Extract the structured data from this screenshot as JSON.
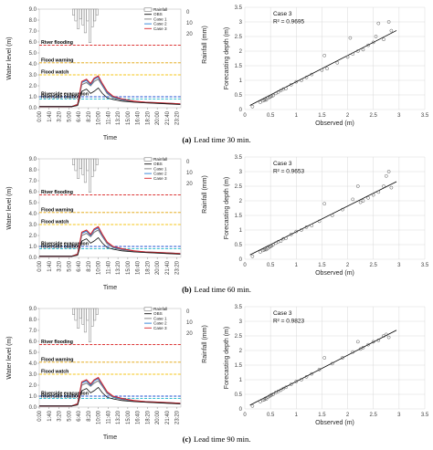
{
  "hydro": {
    "ylabel": "Water level (m)",
    "y2label": "Rainfall (mm)",
    "xlabel": "Time",
    "y_ticks": [
      "0.0",
      "1.0",
      "2.0",
      "3.0",
      "4.0",
      "5.0",
      "6.0",
      "7.0",
      "8.0",
      "9.0"
    ],
    "y2_ticks": [
      "0",
      "10",
      "20"
    ],
    "x_ticks": [
      "0:00",
      "1:40",
      "3:20",
      "5:00",
      "6:40",
      "8:20",
      "10:00",
      "11:40",
      "13:20",
      "15:00",
      "16:40",
      "18:20",
      "20:00",
      "21:40",
      "23:20"
    ],
    "levels": [
      {
        "name": "River flooding",
        "value": 5.7,
        "color": "#d81b1b"
      },
      {
        "name": "Flood warning",
        "value": 4.1,
        "color": "#e0a000"
      },
      {
        "name": "Flood watch",
        "value": 3.0,
        "color": "#f5c518"
      },
      {
        "name": "Riverside evacuation",
        "value": 1.0,
        "color": "#1f4fd0"
      },
      {
        "name": "Riverside caution",
        "value": 0.8,
        "color": "#19b5c9"
      }
    ],
    "legend": [
      "Rainfall",
      "OBS",
      "Case 1",
      "Case 2",
      "Case 3"
    ],
    "series_colors": {
      "OBS": "#111111",
      "Case 1": "#7f7f7f",
      "Case 2": "#2a7fd4",
      "Case 3": "#d7262b"
    }
  },
  "scatter": {
    "xlabel": "Observed (m)",
    "ylabel": "Forecasting depth (m)",
    "ticks": [
      "0",
      "0.5",
      "1",
      "1.5",
      "2",
      "2.5",
      "3",
      "3.5"
    ]
  },
  "panels": [
    {
      "letter": "(a)",
      "caption": "Lead time 30 min.",
      "case_label": "Case 3",
      "r2": "R² = 0.9695"
    },
    {
      "letter": "(b)",
      "caption": "Lead time 60 min.",
      "case_label": "Case 3",
      "r2": "R² = 0.9653"
    },
    {
      "letter": "(c)",
      "caption": "Lead time 90 min.",
      "case_label": "Case 3",
      "r2": "R² = 0.9823"
    }
  ],
  "chart_data": [
    {
      "type": "line",
      "title": "",
      "xlabel": "Time",
      "ylabel": "Water level (m)",
      "ylim": [
        0,
        9
      ],
      "x": [
        0,
        5.5,
        6.5,
        7.2,
        8.0,
        8.7,
        9.3,
        10.0,
        10.7,
        11.5,
        12.5,
        14.0,
        16.0,
        18.0,
        20.0,
        22.0,
        23.9
      ],
      "series": [
        {
          "name": "OBS",
          "values": [
            0.1,
            0.1,
            0.2,
            1.5,
            1.7,
            1.3,
            1.5,
            1.8,
            1.3,
            0.9,
            0.75,
            0.6,
            0.5,
            0.45,
            0.4,
            0.35,
            0.3
          ]
        },
        {
          "name": "Case 1",
          "values": [
            0.1,
            0.1,
            0.3,
            2.1,
            2.3,
            2.0,
            2.4,
            2.6,
            2.0,
            1.3,
            0.9,
            0.7,
            0.55,
            0.45,
            0.4,
            0.35,
            0.3
          ]
        },
        {
          "name": "Case 2",
          "values": [
            0.1,
            0.1,
            0.3,
            2.3,
            2.5,
            2.1,
            2.6,
            2.8,
            2.1,
            1.4,
            1.0,
            0.75,
            0.6,
            0.5,
            0.45,
            0.4,
            0.35
          ]
        },
        {
          "name": "Case 3",
          "values": [
            0.1,
            0.1,
            0.3,
            2.4,
            2.6,
            2.2,
            2.7,
            2.9,
            2.2,
            1.5,
            1.05,
            0.8,
            0.6,
            0.5,
            0.45,
            0.4,
            0.35
          ]
        }
      ],
      "rainfall": {
        "x": [
          5.8,
          6.2,
          6.6,
          7.0,
          7.4,
          7.8,
          8.2,
          8.6,
          9.0,
          9.4,
          9.8
        ],
        "values": [
          3,
          6,
          10,
          5,
          8,
          12,
          6,
          17,
          9,
          6,
          3
        ],
        "y2lim": [
          0,
          30
        ]
      },
      "thresholds": {
        "River flooding": 5.7,
        "Flood warning": 4.1,
        "Flood watch": 3.0,
        "Riverside evacuation": 1.0,
        "Riverside caution": 0.8
      }
    },
    {
      "type": "scatter",
      "title": "",
      "xlabel": "Observed (m)",
      "ylabel": "Forecasting depth (m)",
      "xlim": [
        0,
        3.5
      ],
      "ylim": [
        0,
        3.5
      ],
      "trendline": {
        "slope": 0.9,
        "intercept": 0.05
      },
      "x": [
        0.15,
        0.3,
        0.35,
        0.38,
        0.4,
        0.42,
        0.45,
        0.48,
        0.5,
        0.52,
        0.55,
        0.6,
        0.65,
        0.7,
        0.75,
        0.8,
        0.9,
        1.0,
        1.1,
        1.2,
        1.3,
        1.5,
        1.55,
        1.6,
        1.8,
        2.0,
        2.05,
        2.1,
        2.2,
        2.3,
        2.4,
        2.5,
        2.55,
        2.6,
        2.7,
        2.8,
        2.85
      ],
      "y": [
        0.1,
        0.25,
        0.3,
        0.32,
        0.35,
        0.33,
        0.4,
        0.42,
        0.44,
        0.46,
        0.48,
        0.55,
        0.6,
        0.65,
        0.7,
        0.72,
        0.85,
        0.95,
        1.0,
        1.1,
        1.2,
        1.35,
        1.85,
        1.4,
        1.6,
        1.8,
        2.45,
        1.9,
        2.0,
        2.05,
        2.2,
        2.3,
        2.5,
        2.95,
        2.4,
        3.0,
        2.7
      ]
    },
    {
      "type": "line",
      "title": "",
      "xlabel": "Time",
      "ylabel": "Water level (m)",
      "ylim": [
        0,
        9
      ],
      "x": [
        0,
        5.5,
        6.5,
        7.2,
        8.0,
        8.7,
        9.3,
        10.0,
        10.7,
        11.5,
        12.5,
        14.0,
        16.0,
        18.0,
        20.0,
        22.0,
        23.9
      ],
      "series": [
        {
          "name": "OBS",
          "values": [
            0.1,
            0.1,
            0.2,
            1.5,
            1.7,
            1.3,
            1.5,
            1.8,
            1.3,
            0.9,
            0.75,
            0.6,
            0.5,
            0.45,
            0.4,
            0.35,
            0.3
          ]
        },
        {
          "name": "Case 1",
          "values": [
            0.1,
            0.1,
            0.3,
            2.0,
            2.2,
            1.9,
            2.3,
            2.5,
            1.9,
            1.25,
            0.9,
            0.7,
            0.55,
            0.45,
            0.4,
            0.35,
            0.3
          ]
        },
        {
          "name": "Case 2",
          "values": [
            0.1,
            0.1,
            0.3,
            2.2,
            2.4,
            2.0,
            2.5,
            2.7,
            2.0,
            1.35,
            0.95,
            0.75,
            0.6,
            0.5,
            0.45,
            0.4,
            0.35
          ]
        },
        {
          "name": "Case 3",
          "values": [
            0.1,
            0.1,
            0.3,
            2.3,
            2.5,
            2.1,
            2.6,
            2.8,
            2.1,
            1.4,
            1.0,
            0.8,
            0.6,
            0.5,
            0.45,
            0.4,
            0.35
          ]
        }
      ],
      "rainfall": {
        "x": [
          5.8,
          6.2,
          6.6,
          7.0,
          7.4,
          7.8,
          8.2,
          8.6,
          9.0,
          9.4,
          9.8
        ],
        "values": [
          3,
          6,
          10,
          5,
          8,
          12,
          6,
          17,
          9,
          6,
          3
        ],
        "y2lim": [
          0,
          30
        ]
      },
      "thresholds": {
        "River flooding": 5.7,
        "Flood warning": 4.1,
        "Flood watch": 3.0,
        "Riverside evacuation": 1.0,
        "Riverside caution": 0.8
      }
    },
    {
      "type": "scatter",
      "title": "",
      "xlabel": "Observed (m)",
      "ylabel": "Forecasting depth (m)",
      "xlim": [
        0,
        3.5
      ],
      "ylim": [
        0,
        3.5
      ],
      "trendline": {
        "slope": 0.88,
        "intercept": 0.06
      },
      "x": [
        0.15,
        0.3,
        0.35,
        0.38,
        0.4,
        0.42,
        0.45,
        0.48,
        0.5,
        0.52,
        0.55,
        0.6,
        0.65,
        0.7,
        0.75,
        0.8,
        0.9,
        1.0,
        1.1,
        1.2,
        1.3,
        1.45,
        1.55,
        1.7,
        1.9,
        2.1,
        2.2,
        2.25,
        2.3,
        2.4,
        2.5,
        2.6,
        2.7,
        2.75,
        2.8,
        2.85
      ],
      "y": [
        0.1,
        0.25,
        0.3,
        0.32,
        0.35,
        0.33,
        0.38,
        0.42,
        0.44,
        0.46,
        0.5,
        0.55,
        0.6,
        0.62,
        0.7,
        0.72,
        0.85,
        0.95,
        1.0,
        1.1,
        1.15,
        1.3,
        1.9,
        1.5,
        1.7,
        2.05,
        2.5,
        1.95,
        2.0,
        2.1,
        2.2,
        2.3,
        2.5,
        2.85,
        3.0,
        2.45
      ]
    },
    {
      "type": "line",
      "title": "",
      "xlabel": "Time",
      "ylabel": "Water level (m)",
      "ylim": [
        0,
        9
      ],
      "x": [
        0,
        5.5,
        6.5,
        7.2,
        8.0,
        8.7,
        9.3,
        10.0,
        10.7,
        11.5,
        12.5,
        14.0,
        16.0,
        18.0,
        20.0,
        22.0,
        23.9
      ],
      "series": [
        {
          "name": "OBS",
          "values": [
            0.1,
            0.1,
            0.2,
            1.5,
            1.7,
            1.3,
            1.5,
            1.8,
            1.3,
            0.9,
            0.75,
            0.6,
            0.5,
            0.45,
            0.4,
            0.35,
            0.3
          ]
        },
        {
          "name": "Case 1",
          "values": [
            0.1,
            0.1,
            0.3,
            2.0,
            2.2,
            1.9,
            2.2,
            2.4,
            1.9,
            1.25,
            0.9,
            0.7,
            0.55,
            0.45,
            0.4,
            0.35,
            0.3
          ]
        },
        {
          "name": "Case 2",
          "values": [
            0.1,
            0.1,
            0.3,
            2.2,
            2.4,
            2.0,
            2.4,
            2.6,
            2.0,
            1.35,
            0.95,
            0.75,
            0.6,
            0.5,
            0.45,
            0.4,
            0.35
          ]
        },
        {
          "name": "Case 3",
          "values": [
            0.1,
            0.1,
            0.3,
            2.3,
            2.5,
            2.1,
            2.5,
            2.7,
            2.1,
            1.4,
            1.0,
            0.8,
            0.6,
            0.5,
            0.45,
            0.4,
            0.35
          ]
        }
      ],
      "rainfall": {
        "x": [
          5.8,
          6.2,
          6.6,
          7.0,
          7.4,
          7.8,
          8.2,
          8.6,
          9.0,
          9.4,
          9.8
        ],
        "values": [
          3,
          6,
          10,
          5,
          8,
          12,
          6,
          17,
          9,
          6,
          3
        ],
        "y2lim": [
          0,
          30
        ]
      },
      "thresholds": {
        "River flooding": 5.7,
        "Flood warning": 4.1,
        "Flood watch": 3.0,
        "Riverside evacuation": 1.0,
        "Riverside caution": 0.8
      }
    },
    {
      "type": "scatter",
      "title": "",
      "xlabel": "Observed (m)",
      "ylabel": "Forecasting depth (m)",
      "xlim": [
        0,
        3.5
      ],
      "ylim": [
        0,
        3.5
      ],
      "trendline": {
        "slope": 0.9,
        "intercept": 0.04
      },
      "x": [
        0.15,
        0.3,
        0.35,
        0.38,
        0.4,
        0.42,
        0.45,
        0.48,
        0.5,
        0.52,
        0.55,
        0.6,
        0.65,
        0.7,
        0.75,
        0.8,
        0.9,
        1.0,
        1.1,
        1.2,
        1.3,
        1.45,
        1.55,
        1.7,
        1.9,
        2.1,
        2.2,
        2.25,
        2.3,
        2.4,
        2.5,
        2.6,
        2.7,
        2.75,
        2.8
      ],
      "y": [
        0.1,
        0.25,
        0.3,
        0.32,
        0.36,
        0.34,
        0.4,
        0.43,
        0.46,
        0.48,
        0.5,
        0.56,
        0.6,
        0.64,
        0.7,
        0.74,
        0.84,
        0.94,
        1.0,
        1.1,
        1.2,
        1.35,
        1.75,
        1.55,
        1.75,
        1.95,
        2.3,
        2.05,
        2.1,
        2.2,
        2.3,
        2.35,
        2.5,
        2.55,
        2.45
      ]
    }
  ]
}
